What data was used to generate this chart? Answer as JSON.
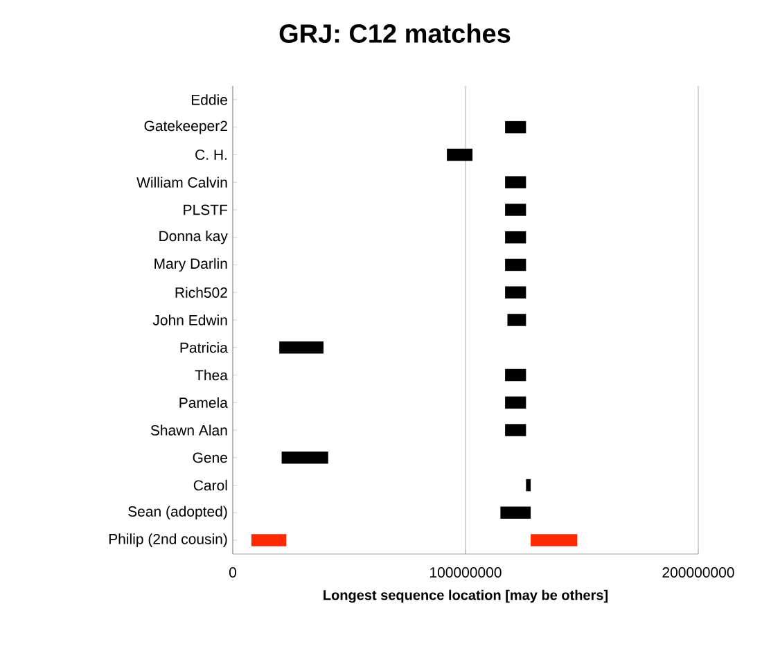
{
  "chart_data": {
    "type": "bar",
    "orientation": "horizontal",
    "title": "GRJ: C12 matches",
    "xlabel": "Longest sequence location [may be others]",
    "categories": [
      "Eddie",
      "Gatekeeper2",
      "C. H.",
      "William Calvin",
      "PLSTF",
      "Donna kay",
      "Mary Darlin",
      "Rich502",
      "John Edwin",
      "Patricia",
      "Thea",
      "Pamela",
      "Shawn Alan",
      "Gene",
      "Carol",
      "Sean (adopted)",
      "Philip (2nd cousin)"
    ],
    "series": [
      {
        "colors": [
          "#000000",
          "#000000",
          "#000000",
          "#000000",
          "#000000",
          "#000000",
          "#000000",
          "#000000",
          "#000000",
          "#000000",
          "#000000",
          "#000000",
          "#000000",
          "#000000",
          "#000000",
          "#000000",
          "#ff2a00"
        ],
        "base": [
          null,
          117000000,
          92000000,
          117000000,
          117000000,
          117000000,
          117000000,
          117000000,
          118000000,
          20000000,
          117000000,
          117000000,
          117000000,
          21000000,
          126000000,
          115000000,
          8000000
        ],
        "values": [
          null,
          9000000,
          11000000,
          9000000,
          9000000,
          9000000,
          9000000,
          9000000,
          8000000,
          19000000,
          9000000,
          9000000,
          9000000,
          20000000,
          2000000,
          13000000,
          15000000
        ]
      },
      {
        "color": "#ff2a00",
        "base": [
          null,
          null,
          null,
          null,
          null,
          null,
          null,
          null,
          null,
          null,
          null,
          null,
          null,
          null,
          null,
          null,
          128000000
        ],
        "values": [
          null,
          null,
          null,
          null,
          null,
          null,
          null,
          null,
          null,
          null,
          null,
          null,
          null,
          null,
          null,
          null,
          20000000
        ]
      }
    ],
    "xlim": [
      0,
      200000000
    ],
    "xticks": [
      0,
      100000000,
      200000000
    ],
    "grid": "x"
  }
}
